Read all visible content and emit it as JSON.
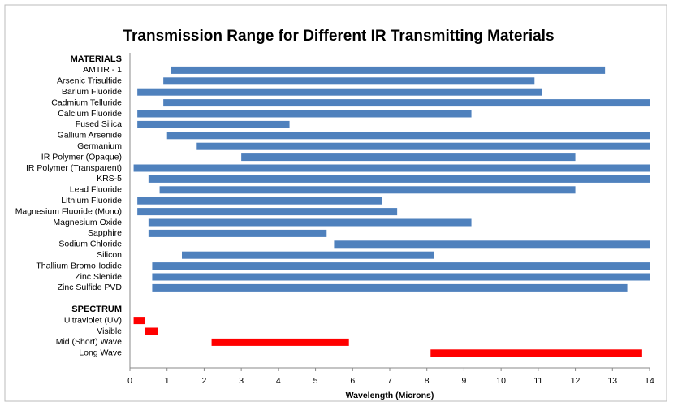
{
  "chart_data": {
    "type": "range_bar",
    "title": "Transmission Range for Different IR Transmitting Materials",
    "x_label": "Wavelength (Microns)",
    "xlim": [
      0,
      14
    ],
    "xticks": [
      0,
      1,
      2,
      3,
      4,
      5,
      6,
      7,
      8,
      9,
      10,
      11,
      12,
      13,
      14
    ],
    "groups": [
      {
        "label": "MATERIALS",
        "color": "#4f81bd",
        "categories": [
          "AMTIR - 1",
          "Arsenic Trisulfide",
          "Barium Fluoride",
          "Cadmium Telluride",
          "Calcium Fluoride",
          "Fused Silica",
          "Gallium Arsenide",
          "Germanium",
          "IR Polymer (Opaque)",
          "IR Polymer (Transparent)",
          "KRS-5",
          "Lead Fluoride",
          "Lithium Fluoride",
          "Magnesium Fluoride (Mono)",
          "Magnesium Oxide",
          "Sapphire",
          "Sodium Chloride",
          "Silicon",
          "Thallium Bromo-Iodide",
          "Zinc Slenide",
          "Zinc Sulfide PVD"
        ],
        "ranges": [
          [
            1.1,
            12.8
          ],
          [
            0.9,
            10.9
          ],
          [
            0.2,
            11.1
          ],
          [
            0.9,
            14
          ],
          [
            0.2,
            9.2
          ],
          [
            0.2,
            4.3
          ],
          [
            1.0,
            14
          ],
          [
            1.8,
            14
          ],
          [
            3.0,
            12.0
          ],
          [
            0.1,
            14
          ],
          [
            0.5,
            14
          ],
          [
            0.8,
            12.0
          ],
          [
            0.2,
            6.8
          ],
          [
            0.2,
            7.2
          ],
          [
            0.5,
            9.2
          ],
          [
            0.5,
            5.3
          ],
          [
            5.5,
            14
          ],
          [
            1.4,
            8.2
          ],
          [
            0.6,
            14
          ],
          [
            0.6,
            14
          ],
          [
            0.6,
            13.4
          ]
        ]
      },
      {
        "label": "SPECTRUM",
        "color": "#ff0000",
        "categories": [
          "Ultraviolet (UV)",
          "Visible",
          "Mid (Short) Wave",
          "Long Wave"
        ],
        "ranges": [
          [
            0.1,
            0.4
          ],
          [
            0.4,
            0.75
          ],
          [
            2.2,
            5.9
          ],
          [
            8.1,
            13.8
          ]
        ]
      }
    ]
  }
}
